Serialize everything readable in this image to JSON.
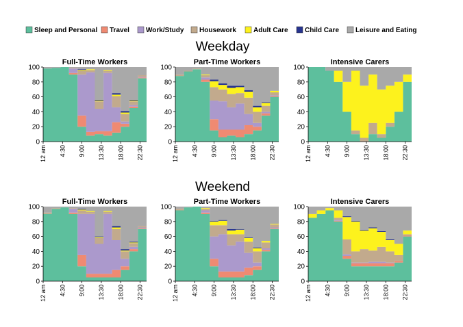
{
  "legend": [
    {
      "label": "Sleep and Personal",
      "color": "#5dbf9d"
    },
    {
      "label": "Travel",
      "color": "#ef8a72"
    },
    {
      "label": "Work/Study",
      "color": "#ab99cc"
    },
    {
      "label": "Housework",
      "color": "#c2aa8d"
    },
    {
      "label": "Adult Care",
      "color": "#fdf21d"
    },
    {
      "label": "Child Care",
      "color": "#27348f"
    },
    {
      "label": "Leisure and Eating",
      "color": "#a9a9a9"
    }
  ],
  "sections": [
    {
      "title": "Weekday"
    },
    {
      "title": "Weekend"
    }
  ],
  "chart_data": [
    {
      "type": "area",
      "stacked": true,
      "section": "Weekday",
      "title": "Full-Time Workers",
      "x": [
        0,
        2,
        4,
        6,
        8,
        10,
        12,
        14,
        16,
        18,
        20,
        22
      ],
      "xtick_labels": [
        "12 am",
        "4:30",
        "9:00",
        "13:30",
        "18:00",
        "22:30"
      ],
      "xtick_positions": [
        0,
        4.5,
        9,
        13.5,
        18,
        22.5
      ],
      "ylim": [
        0,
        100
      ],
      "yticks": [
        0,
        20,
        40,
        60,
        80,
        100
      ],
      "series": [
        {
          "name": "Sleep and Personal",
          "values": [
            98,
            99,
            100,
            90,
            20,
            8,
            10,
            8,
            12,
            20,
            45,
            85
          ]
        },
        {
          "name": "Travel",
          "values": [
            0,
            0,
            0,
            2,
            15,
            5,
            4,
            6,
            14,
            4,
            2,
            1
          ]
        },
        {
          "name": "Work/Study",
          "values": [
            0,
            0,
            0,
            6,
            55,
            80,
            30,
            78,
            20,
            3,
            2,
            1
          ]
        },
        {
          "name": "Housework",
          "values": [
            0,
            0,
            0,
            1,
            5,
            3,
            10,
            3,
            15,
            10,
            5,
            2
          ]
        },
        {
          "name": "Adult Care",
          "values": [
            0,
            0,
            0,
            0,
            1,
            1,
            1,
            1,
            2,
            2,
            1,
            0
          ]
        },
        {
          "name": "Child Care",
          "values": [
            0,
            0,
            0,
            0,
            1,
            0,
            1,
            0,
            2,
            2,
            1,
            0
          ]
        },
        {
          "name": "Leisure and Eating",
          "values": [
            2,
            1,
            0,
            1,
            3,
            3,
            44,
            4,
            35,
            59,
            44,
            11
          ]
        }
      ]
    },
    {
      "type": "area",
      "stacked": true,
      "section": "Weekday",
      "title": "Part-Time Workers",
      "x": [
        0,
        2,
        4,
        6,
        8,
        10,
        12,
        14,
        16,
        18,
        20,
        22
      ],
      "xtick_labels": [
        "12 am",
        "4:30",
        "9:00",
        "13:30",
        "18:00",
        "22:30"
      ],
      "xtick_positions": [
        0,
        4.5,
        9,
        13.5,
        18,
        22.5
      ],
      "ylim": [
        0,
        100
      ],
      "yticks": [
        0,
        20,
        40,
        60,
        80,
        100
      ],
      "series": [
        {
          "name": "Sleep and Personal",
          "values": [
            88,
            94,
            97,
            80,
            15,
            6,
            8,
            6,
            10,
            15,
            35,
            60
          ]
        },
        {
          "name": "Travel",
          "values": [
            0,
            0,
            0,
            3,
            15,
            10,
            8,
            10,
            12,
            5,
            3,
            1
          ]
        },
        {
          "name": "Work/Study",
          "values": [
            0,
            0,
            0,
            3,
            25,
            38,
            30,
            35,
            15,
            5,
            2,
            1
          ]
        },
        {
          "name": "Housework",
          "values": [
            2,
            1,
            1,
            3,
            18,
            16,
            18,
            14,
            22,
            15,
            8,
            4
          ]
        },
        {
          "name": "Adult Care",
          "values": [
            0,
            0,
            0,
            1,
            8,
            6,
            8,
            8,
            8,
            6,
            4,
            2
          ]
        },
        {
          "name": "Child Care",
          "values": [
            0,
            0,
            0,
            0,
            2,
            2,
            3,
            2,
            2,
            2,
            1,
            0
          ]
        },
        {
          "name": "Leisure and Eating",
          "values": [
            10,
            5,
            2,
            10,
            17,
            22,
            25,
            25,
            31,
            52,
            47,
            32
          ]
        }
      ]
    },
    {
      "type": "area",
      "stacked": true,
      "section": "Weekday",
      "title": "Intensive Carers",
      "x": [
        0,
        2,
        4,
        6,
        8,
        10,
        12,
        14,
        16,
        18,
        20,
        22
      ],
      "xtick_labels": [
        "12 am",
        "4:30",
        "9:00",
        "13:30",
        "18:00",
        "22:30"
      ],
      "xtick_positions": [
        0,
        4.5,
        9,
        13.5,
        18,
        22.5
      ],
      "ylim": [
        0,
        100
      ],
      "yticks": [
        0,
        20,
        40,
        60,
        80,
        100
      ],
      "series": [
        {
          "name": "Sleep and Personal",
          "values": [
            100,
            100,
            95,
            80,
            40,
            10,
            0,
            10,
            5,
            20,
            40,
            80
          ]
        },
        {
          "name": "Travel",
          "values": [
            0,
            0,
            0,
            0,
            0,
            0,
            0,
            0,
            0,
            0,
            0,
            0
          ]
        },
        {
          "name": "Work/Study",
          "values": [
            0,
            0,
            0,
            0,
            0,
            0,
            0,
            0,
            0,
            0,
            0,
            0
          ]
        },
        {
          "name": "Housework",
          "values": [
            0,
            0,
            0,
            0,
            0,
            5,
            5,
            15,
            5,
            5,
            0,
            0
          ]
        },
        {
          "name": "Adult Care",
          "values": [
            0,
            0,
            0,
            15,
            40,
            80,
            70,
            65,
            60,
            50,
            40,
            10
          ]
        },
        {
          "name": "Child Care",
          "values": [
            0,
            0,
            0,
            0,
            0,
            0,
            0,
            0,
            0,
            0,
            0,
            0
          ]
        },
        {
          "name": "Leisure and Eating",
          "values": [
            0,
            0,
            5,
            5,
            20,
            5,
            25,
            10,
            30,
            25,
            20,
            10
          ]
        }
      ]
    },
    {
      "type": "area",
      "stacked": true,
      "section": "Weekend",
      "title": "Full-Time Workers",
      "x": [
        0,
        2,
        4,
        6,
        8,
        10,
        12,
        14,
        16,
        18,
        20,
        22
      ],
      "xtick_labels": [
        "12 am",
        "4:30",
        "9:00",
        "13:30",
        "18:00",
        "22:30"
      ],
      "xtick_positions": [
        0,
        4.5,
        9,
        13.5,
        18,
        22.5
      ],
      "ylim": [
        0,
        100
      ],
      "yticks": [
        0,
        20,
        40,
        60,
        80,
        100
      ],
      "series": [
        {
          "name": "Sleep and Personal",
          "values": [
            90,
            97,
            99,
            90,
            20,
            5,
            5,
            5,
            5,
            15,
            40,
            70
          ]
        },
        {
          "name": "Travel",
          "values": [
            0,
            0,
            0,
            2,
            15,
            5,
            5,
            5,
            10,
            5,
            3,
            1
          ]
        },
        {
          "name": "Work/Study",
          "values": [
            0,
            0,
            0,
            5,
            55,
            80,
            40,
            80,
            40,
            10,
            3,
            1
          ]
        },
        {
          "name": "Housework",
          "values": [
            2,
            1,
            0,
            1,
            5,
            3,
            8,
            3,
            15,
            10,
            5,
            2
          ]
        },
        {
          "name": "Adult Care",
          "values": [
            0,
            0,
            0,
            0,
            1,
            1,
            1,
            1,
            2,
            1,
            1,
            0
          ]
        },
        {
          "name": "Child Care",
          "values": [
            0,
            0,
            0,
            0,
            1,
            0,
            1,
            0,
            2,
            2,
            1,
            0
          ]
        },
        {
          "name": "Leisure and Eating",
          "values": [
            8,
            2,
            1,
            2,
            3,
            6,
            40,
            6,
            26,
            57,
            47,
            26
          ]
        }
      ]
    },
    {
      "type": "area",
      "stacked": true,
      "section": "Weekend",
      "title": "Part-Time Workers",
      "x": [
        0,
        2,
        4,
        6,
        8,
        10,
        12,
        14,
        16,
        18,
        20,
        22
      ],
      "xtick_labels": [
        "12 am",
        "4:30",
        "9:00",
        "13:30",
        "18:00",
        "22:30"
      ],
      "xtick_positions": [
        0,
        4.5,
        9,
        13.5,
        18,
        22.5
      ],
      "ylim": [
        0,
        100
      ],
      "yticks": [
        0,
        20,
        40,
        60,
        80,
        100
      ],
      "series": [
        {
          "name": "Sleep and Personal",
          "values": [
            95,
            99,
            100,
            90,
            20,
            5,
            5,
            5,
            8,
            15,
            40,
            70
          ]
        },
        {
          "name": "Travel",
          "values": [
            0,
            0,
            0,
            2,
            10,
            8,
            8,
            8,
            10,
            5,
            2,
            1
          ]
        },
        {
          "name": "Work/Study",
          "values": [
            0,
            0,
            0,
            3,
            30,
            50,
            35,
            40,
            20,
            5,
            2,
            1
          ]
        },
        {
          "name": "Housework",
          "values": [
            2,
            0,
            0,
            2,
            15,
            12,
            15,
            10,
            15,
            15,
            8,
            4
          ]
        },
        {
          "name": "Adult Care",
          "values": [
            0,
            0,
            0,
            1,
            5,
            6,
            5,
            6,
            5,
            4,
            2,
            1
          ]
        },
        {
          "name": "Child Care",
          "values": [
            0,
            0,
            0,
            0,
            1,
            1,
            2,
            1,
            1,
            1,
            0,
            0
          ]
        },
        {
          "name": "Leisure and Eating",
          "values": [
            3,
            1,
            0,
            2,
            19,
            18,
            30,
            30,
            41,
            55,
            46,
            23
          ]
        }
      ]
    },
    {
      "type": "area",
      "stacked": true,
      "section": "Weekend",
      "title": "Intensive Carers",
      "x": [
        0,
        2,
        4,
        6,
        8,
        10,
        12,
        14,
        16,
        18,
        20,
        22
      ],
      "xtick_labels": [
        "12 am",
        "4:30",
        "9:00",
        "13:30",
        "18:00",
        "22:30"
      ],
      "xtick_positions": [
        0,
        4.5,
        9,
        13.5,
        18,
        22.5
      ],
      "ylim": [
        0,
        100
      ],
      "yticks": [
        0,
        20,
        40,
        60,
        80,
        100
      ],
      "series": [
        {
          "name": "Sleep and Personal",
          "values": [
            85,
            90,
            95,
            80,
            30,
            20,
            20,
            20,
            20,
            20,
            25,
            60
          ]
        },
        {
          "name": "Travel",
          "values": [
            0,
            0,
            0,
            1,
            4,
            4,
            4,
            4,
            4,
            4,
            2,
            1
          ]
        },
        {
          "name": "Work/Study",
          "values": [
            0,
            0,
            0,
            1,
            2,
            1,
            1,
            2,
            2,
            1,
            0,
            0
          ]
        },
        {
          "name": "Housework",
          "values": [
            0,
            0,
            0,
            3,
            20,
            15,
            18,
            15,
            20,
            15,
            8,
            2
          ]
        },
        {
          "name": "Adult Care",
          "values": [
            5,
            5,
            3,
            10,
            30,
            40,
            25,
            30,
            20,
            15,
            15,
            5
          ]
        },
        {
          "name": "Child Care",
          "values": [
            0,
            0,
            0,
            0,
            1,
            1,
            1,
            1,
            1,
            1,
            0,
            0
          ]
        },
        {
          "name": "Leisure and Eating",
          "values": [
            10,
            5,
            2,
            5,
            13,
            19,
            31,
            28,
            33,
            44,
            50,
            32
          ]
        }
      ]
    }
  ]
}
